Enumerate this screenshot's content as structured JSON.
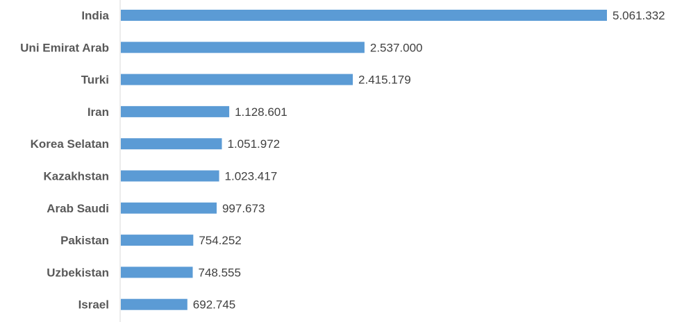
{
  "chart_data": {
    "type": "bar",
    "orientation": "horizontal",
    "categories": [
      "India",
      "Uni Emirat Arab",
      "Turki",
      "Iran",
      "Korea Selatan",
      "Kazakhstan",
      "Arab Saudi",
      "Pakistan",
      "Uzbekistan",
      "Israel"
    ],
    "values": [
      5061332,
      2537000,
      2415179,
      1128601,
      1051972,
      1023417,
      997673,
      754252,
      748555,
      692745
    ],
    "data_labels": [
      "5.061.332",
      "2.537.000",
      "2.415.179",
      "1.128.601",
      "1.051.972",
      "1.023.417",
      "997.673",
      "754.252",
      "748.555",
      "692.745"
    ],
    "title": "",
    "xlabel": "",
    "ylabel": "",
    "xlim": [
      0,
      5061332
    ],
    "grid": false,
    "legend": "none",
    "bar_color": "#5b9bd5",
    "axis_color": "#d9d9d9"
  }
}
